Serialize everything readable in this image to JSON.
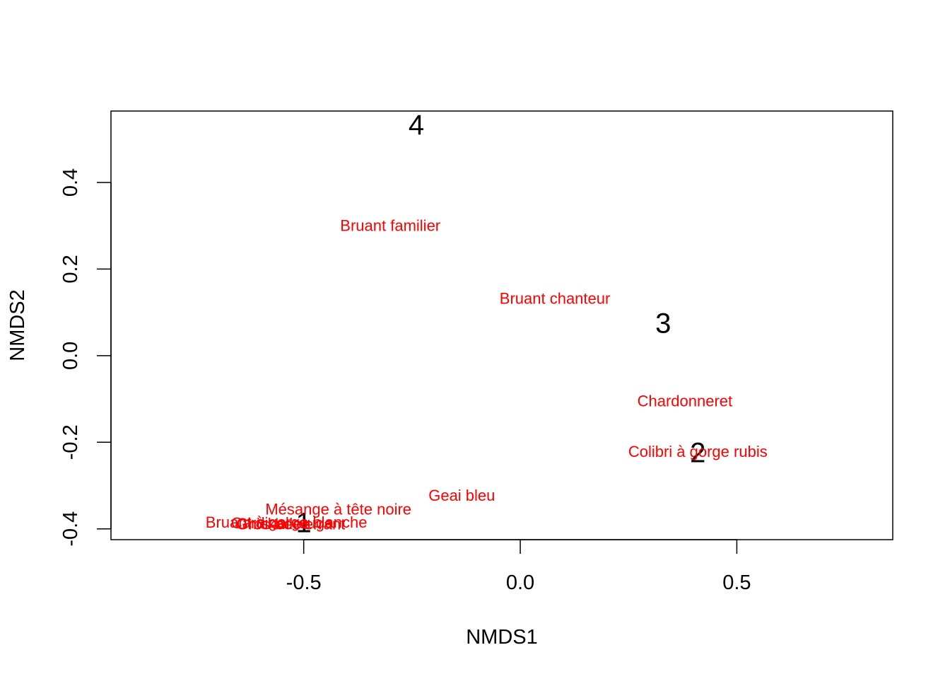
{
  "chart_data": {
    "type": "scatter",
    "title": "",
    "xlabel": "NMDS1",
    "ylabel": "NMDS2",
    "xlim": [
      -0.945,
      0.86
    ],
    "ylim": [
      -0.425,
      0.565
    ],
    "x_ticks": [
      "-0.5",
      "0.0",
      "0.5"
    ],
    "x_tick_values": [
      -0.5,
      0.0,
      0.5
    ],
    "y_ticks": [
      "-0.4",
      "-0.2",
      "0.0",
      "0.2",
      "0.4"
    ],
    "y_tick_values": [
      -0.4,
      -0.2,
      0.0,
      0.2,
      0.4
    ],
    "grid": false,
    "series": [
      {
        "color": "#000000",
        "points": [
          {
            "label": "1",
            "x": -0.5,
            "y": -0.387
          },
          {
            "label": "2",
            "x": 0.41,
            "y": -0.225
          },
          {
            "label": "3",
            "x": 0.33,
            "y": 0.074
          },
          {
            "label": "4",
            "x": -0.24,
            "y": 0.532
          }
        ]
      },
      {
        "color": "#ff0000",
        "points": [
          {
            "label": "Bruant familier",
            "x": -0.3,
            "y": 0.3
          },
          {
            "label": "Bruant chanteur",
            "x": 0.08,
            "y": 0.132
          },
          {
            "label": "Chardonneret",
            "x": 0.38,
            "y": -0.105
          },
          {
            "label": "Colibri à gorge rubis",
            "x": 0.41,
            "y": -0.222
          },
          {
            "label": "Geai bleu",
            "x": -0.135,
            "y": -0.323
          },
          {
            "label": "Mésange à tête noire",
            "x": -0.42,
            "y": -0.355
          },
          {
            "label": "Bruant à gorge blanche",
            "x": -0.54,
            "y": -0.385
          },
          {
            "label": "Cardinal rouge",
            "x": -0.55,
            "y": -0.387
          },
          {
            "label": "Chickadee",
            "x": -0.57,
            "y": -0.388
          },
          {
            "label": "Gros-bec errant",
            "x": -0.53,
            "y": -0.389
          }
        ]
      }
    ]
  }
}
